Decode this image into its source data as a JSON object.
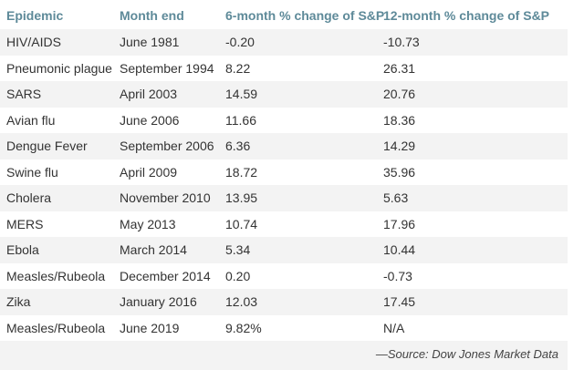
{
  "table": {
    "header": [
      "Epidemic",
      "Month end",
      "6-month % change of S&P",
      "12-month % change of S&P"
    ],
    "rows": [
      [
        "HIV/AIDS",
        "June 1981",
        "-0.20",
        "-10.73"
      ],
      [
        "Pneumonic plague",
        "September 1994",
        "8.22",
        "26.31"
      ],
      [
        "SARS",
        "April 2003",
        "14.59",
        "20.76"
      ],
      [
        "Avian flu",
        "June 2006",
        "11.66",
        "18.36"
      ],
      [
        "Dengue Fever",
        "September 2006",
        "6.36",
        "14.29"
      ],
      [
        "Swine flu",
        "April 2009",
        "18.72",
        "35.96"
      ],
      [
        "Cholera",
        "November 2010",
        "13.95",
        "5.63"
      ],
      [
        "MERS",
        "May 2013",
        "10.74",
        "17.96"
      ],
      [
        "Ebola",
        "March 2014",
        "5.34",
        "10.44"
      ],
      [
        "Measles/Rubeola",
        "December 2014",
        "0.20",
        "-0.73"
      ],
      [
        "Zika",
        "January 2016",
        "12.03",
        "17.45"
      ],
      [
        "Measles/Rubeola",
        "June 2019",
        "9.82%",
        "N/A"
      ]
    ],
    "source": "—Source: Dow Jones Market Data"
  }
}
